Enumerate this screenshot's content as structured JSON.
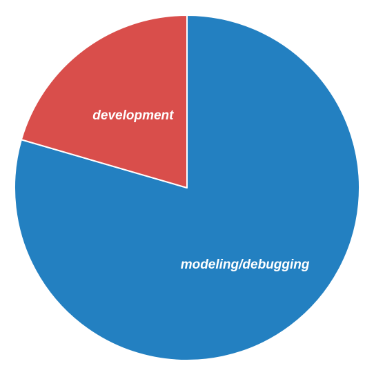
{
  "chart_data": {
    "type": "pie",
    "categories": [
      "modeling/debugging",
      "development"
    ],
    "values": [
      79.5,
      20.5
    ],
    "colors": [
      "#2380c1",
      "#d94e4b"
    ],
    "start": "12 o'clock",
    "direction": "clockwise",
    "legend": "none",
    "title": ""
  }
}
